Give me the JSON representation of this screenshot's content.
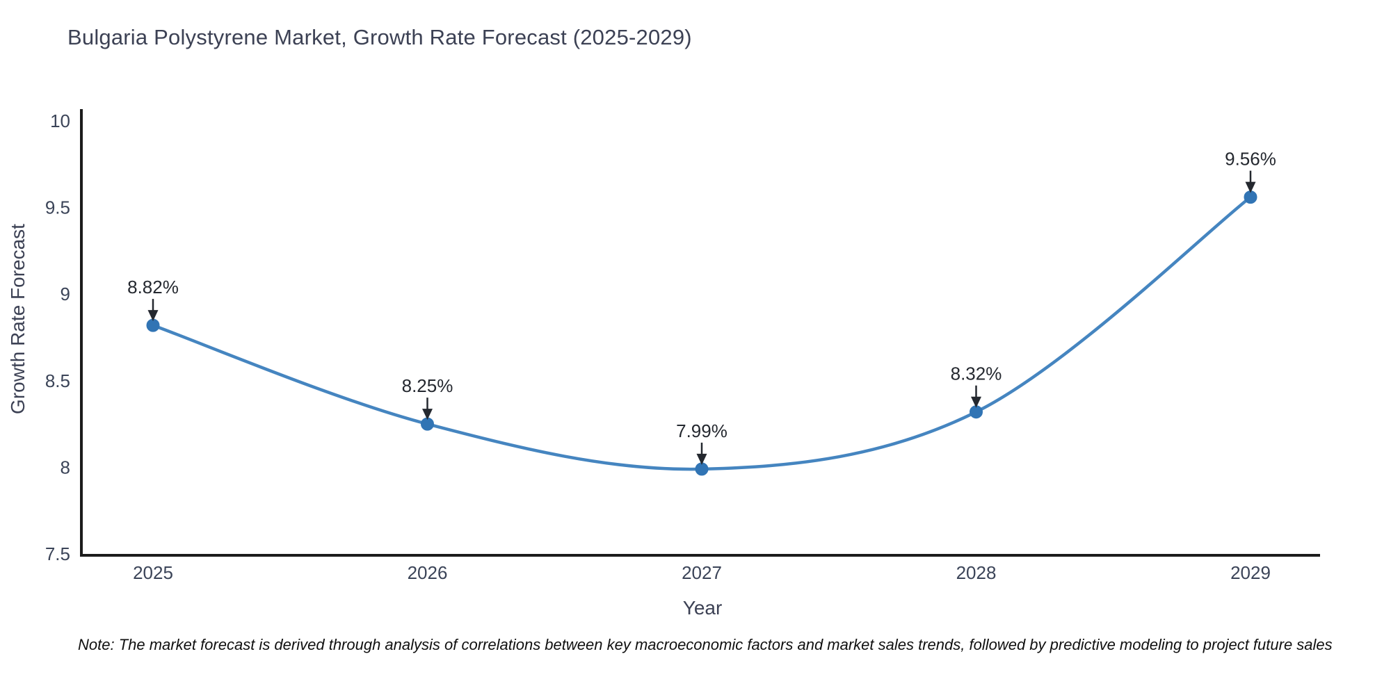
{
  "title": "Bulgaria Polystyrene Market, Growth Rate Forecast (2025-2029)",
  "footnote": "Note: The market forecast is derived through analysis of correlations between key macroeconomic factors and market sales trends, followed by predictive modeling to project future sales",
  "chart_data": {
    "type": "line",
    "title": "Bulgaria Polystyrene Market, Growth Rate Forecast (2025-2029)",
    "xlabel": "Year",
    "ylabel": "Growth Rate Forecast",
    "categories": [
      "2025",
      "2026",
      "2027",
      "2028",
      "2029"
    ],
    "values": [
      8.82,
      8.25,
      7.99,
      8.32,
      9.56
    ],
    "point_labels": [
      "8.82%",
      "8.25%",
      "7.99%",
      "8.32%",
      "9.56%"
    ],
    "ylim": [
      7.5,
      10
    ],
    "yticks": [
      10,
      9.5,
      9,
      8.5,
      8,
      7.5
    ],
    "grid": false,
    "legend": "none",
    "line_shape": "spline",
    "annotations": "arrow-down-to-point",
    "colors": {
      "line": "#4585c0",
      "marker": "#3174b4",
      "axis": "#1c1c1c",
      "tick_text": "#3b4458",
      "annotation": "#24282f",
      "note_text": "#101010"
    }
  }
}
